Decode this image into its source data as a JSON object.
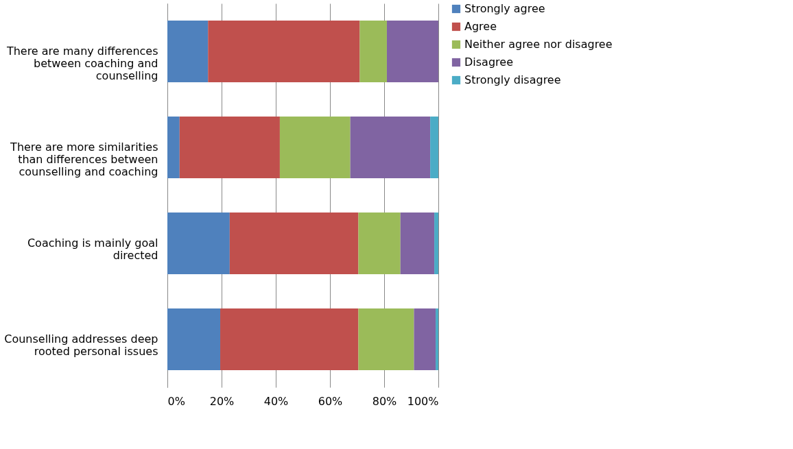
{
  "chart_data": {
    "type": "bar",
    "orientation": "horizontal",
    "stacked": true,
    "categories": [
      "There are many differences between coaching and counselling",
      "There are more similarities than differences between counselling and coaching",
      "Coaching is mainly goal directed",
      "Counselling addresses deep rooted personal issues"
    ],
    "series": [
      {
        "name": "Strongly agree",
        "color": "#4f81bd",
        "values": [
          15,
          4.5,
          23,
          19.5
        ]
      },
      {
        "name": "Agree",
        "color": "#c0504d",
        "values": [
          56,
          37,
          47.5,
          51
        ]
      },
      {
        "name": "Neither agree nor disagree",
        "color": "#9bbb59",
        "values": [
          10,
          26,
          15.5,
          20.5
        ]
      },
      {
        "name": "Disagree",
        "color": "#8064a2",
        "values": [
          19,
          29.5,
          12.5,
          8
        ]
      },
      {
        "name": "Strongly disagree",
        "color": "#4bacc6",
        "values": [
          0,
          3,
          1.5,
          1
        ]
      }
    ],
    "xlim": [
      0,
      100
    ],
    "xticks": [
      {
        "value": 0,
        "label": "0%"
      },
      {
        "value": 20,
        "label": "20%"
      },
      {
        "value": 40,
        "label": "40%"
      },
      {
        "value": 60,
        "label": "60%"
      },
      {
        "value": 80,
        "label": "80%"
      },
      {
        "value": 100,
        "label": "100%"
      }
    ],
    "grid": "x",
    "legend": "right"
  }
}
